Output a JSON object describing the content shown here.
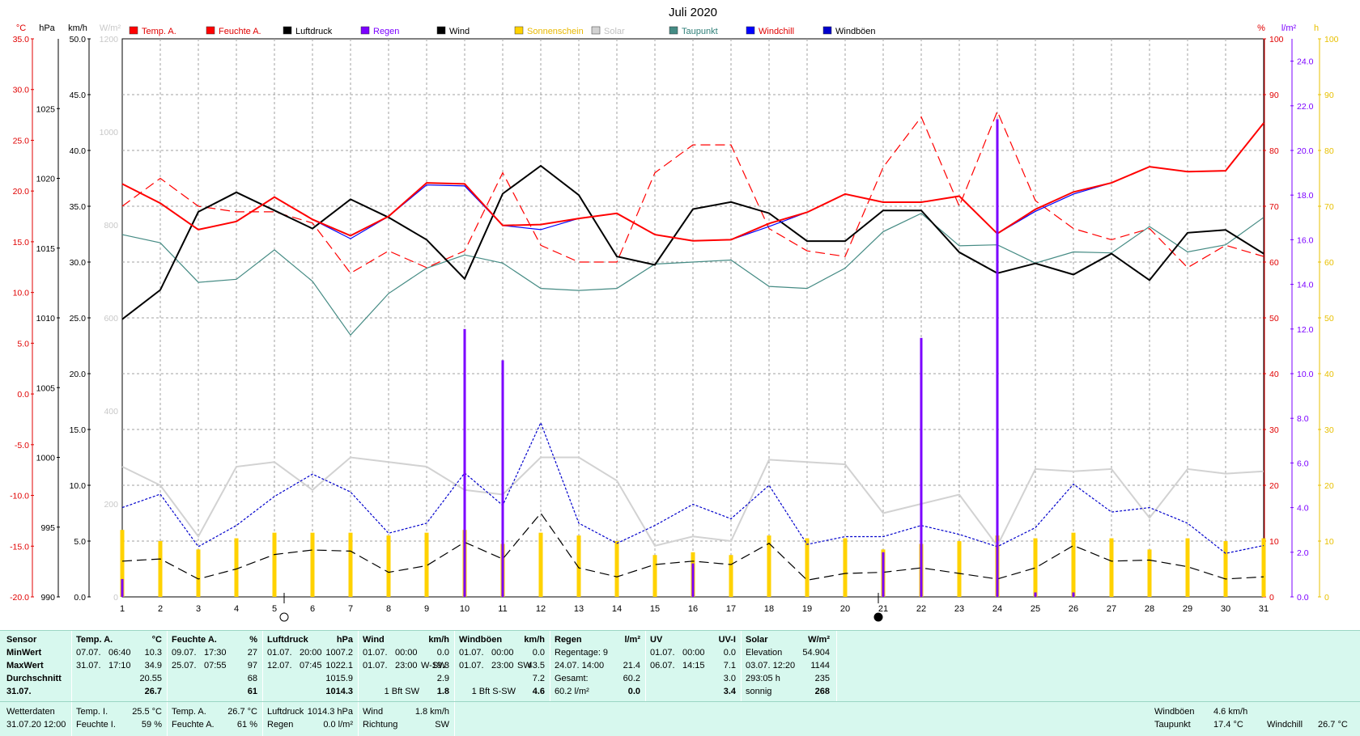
{
  "chart_data": {
    "type": "line",
    "title": "Juli 2020",
    "x": [
      1,
      2,
      3,
      4,
      5,
      6,
      7,
      8,
      9,
      10,
      11,
      12,
      13,
      14,
      15,
      16,
      17,
      18,
      19,
      20,
      21,
      22,
      23,
      24,
      25,
      26,
      27,
      28,
      29,
      30,
      31
    ],
    "axes": [
      {
        "unit": "°C",
        "side": "left",
        "range": [
          -20,
          35
        ],
        "ticks": [
          "35.0",
          "30.0",
          "25.0",
          "20.0",
          "15.0",
          "10.0",
          "5.0",
          "0.0",
          "-5.0",
          "-10.0",
          "-15.0",
          "-20.0"
        ],
        "color": "#e00000"
      },
      {
        "unit": "hPa",
        "side": "left",
        "range": [
          990,
          1030
        ],
        "ticks": [
          "1025",
          "1020",
          "1015",
          "1010",
          "1005",
          "1000",
          "995",
          "990"
        ],
        "color": "#000000"
      },
      {
        "unit": "km/h",
        "side": "left",
        "range": [
          0,
          50
        ],
        "ticks": [
          "50.0",
          "45.0",
          "40.0",
          "35.0",
          "30.0",
          "25.0",
          "20.0",
          "15.0",
          "10.0",
          "5.0",
          "0.0"
        ],
        "color": "#000000"
      },
      {
        "unit": "W/m²",
        "side": "left",
        "range": [
          0,
          1200
        ],
        "ticks": [
          "1200",
          "1000",
          "800",
          "600",
          "400",
          "200",
          "0"
        ],
        "color": "#c8c8c8"
      },
      {
        "unit": "%",
        "side": "right",
        "range": [
          0,
          100
        ],
        "ticks": [
          "100",
          "90",
          "80",
          "70",
          "60",
          "50",
          "40",
          "30",
          "20",
          "10",
          "0"
        ],
        "color": "#e00000"
      },
      {
        "unit": "l/m²",
        "side": "right",
        "range": [
          0,
          25
        ],
        "ticks": [
          "24.0",
          "22.0",
          "20.0",
          "18.0",
          "16.0",
          "14.0",
          "12.0",
          "10.0",
          "8.0",
          "6.0",
          "4.0",
          "2.0",
          "0.0"
        ],
        "color": "#7b00ff"
      },
      {
        "unit": "h",
        "side": "right",
        "range": [
          0,
          100
        ],
        "ticks": [
          "100",
          "90",
          "80",
          "70",
          "60",
          "50",
          "40",
          "30",
          "20",
          "10",
          "0"
        ],
        "color": "#e8c000"
      }
    ],
    "grid": true,
    "legend_position": "top",
    "series": [
      {
        "name": "Temp. A.",
        "axis": "°C",
        "color": "#ff0000",
        "style": "solid-thick",
        "values": [
          20.7,
          18.8,
          16.2,
          17.0,
          19.4,
          17.2,
          15.6,
          17.5,
          20.8,
          20.7,
          16.6,
          16.7,
          17.3,
          17.8,
          15.7,
          15.1,
          15.2,
          16.8,
          17.9,
          19.7,
          18.9,
          18.9,
          19.5,
          15.8,
          18.2,
          19.9,
          20.8,
          22.4,
          21.9,
          22.0,
          26.7
        ]
      },
      {
        "name": "Feuchte A.",
        "axis": "%",
        "color": "#ff0000",
        "style": "dashed",
        "values": [
          70,
          75,
          70,
          69,
          69,
          67,
          58,
          62,
          59,
          62,
          76,
          63,
          60,
          60,
          76,
          81,
          81,
          66,
          62,
          61,
          77,
          86,
          70,
          87,
          71,
          66,
          64,
          66,
          59,
          63,
          61
        ]
      },
      {
        "name": "Luftdruck",
        "axis": "hPa",
        "color": "#000000",
        "style": "solid-thick",
        "values": [
          1009.9,
          1012.0,
          1017.6,
          1019.0,
          1017.7,
          1016.4,
          1018.5,
          1017.2,
          1015.6,
          1012.8,
          1018.9,
          1020.9,
          1018.8,
          1014.4,
          1013.8,
          1017.8,
          1018.3,
          1017.5,
          1015.5,
          1015.5,
          1017.7,
          1017.7,
          1014.7,
          1013.2,
          1013.9,
          1013.1,
          1014.6,
          1012.7,
          1016.1,
          1016.3,
          1014.6
        ]
      },
      {
        "name": "Regen",
        "axis": "l/m²",
        "color": "#7b00ff",
        "style": "bar",
        "values": [
          0.8,
          0,
          0,
          0,
          0,
          0,
          0,
          0,
          0,
          12.0,
          10.6,
          0,
          0,
          0,
          0,
          1.5,
          0,
          0,
          0,
          0,
          2.0,
          11.6,
          0,
          21.4,
          0.2,
          0.2,
          0,
          0,
          0,
          0,
          0
        ]
      },
      {
        "name": "Wind",
        "axis": "km/h",
        "color": "#000000",
        "style": "dashed",
        "values": [
          3.2,
          3.4,
          1.6,
          2.5,
          3.8,
          4.2,
          4.1,
          2.2,
          2.8,
          4.9,
          3.4,
          7.5,
          2.6,
          1.8,
          2.9,
          3.2,
          2.9,
          4.8,
          1.5,
          2.1,
          2.2,
          2.6,
          2.1,
          1.6,
          2.6,
          4.6,
          3.2,
          3.3,
          2.7,
          1.6,
          1.8
        ]
      },
      {
        "name": "Sonnenschein",
        "axis": "h",
        "color": "#ffd200",
        "style": "bar",
        "values": [
          12,
          10,
          8.5,
          10.5,
          11.5,
          11.5,
          11.5,
          11,
          11.5,
          12,
          9.5,
          11.5,
          11,
          10,
          7.5,
          8,
          7.5,
          11,
          10.5,
          10.5,
          8.5,
          9.5,
          10,
          11,
          10.5,
          11.5,
          10.5,
          8.5,
          10.5,
          10,
          10.5
        ]
      },
      {
        "name": "Solar",
        "axis": "W/m²",
        "color": "#d2d2d2",
        "style": "solid-thick",
        "values": [
          280,
          240,
          130,
          280,
          290,
          230,
          300,
          290,
          280,
          230,
          220,
          300,
          300,
          250,
          110,
          130,
          120,
          295,
          290,
          285,
          180,
          200,
          220,
          110,
          275,
          270,
          275,
          170,
          275,
          265,
          270
        ]
      },
      {
        "name": "Taupunkt",
        "axis": "°C",
        "color": "#458b84",
        "style": "solid",
        "values": [
          15.7,
          14.9,
          11.0,
          11.3,
          14.2,
          11.1,
          5.8,
          9.9,
          12.4,
          13.7,
          12.9,
          10.4,
          10.2,
          10.4,
          12.8,
          13.0,
          13.2,
          10.6,
          10.4,
          12.4,
          16.0,
          17.8,
          14.6,
          14.7,
          12.9,
          14.0,
          13.9,
          16.5,
          14.0,
          14.7,
          17.4
        ]
      },
      {
        "name": "Windchill",
        "axis": "°C",
        "color": "#0000ff",
        "style": "solid",
        "values": [
          20.7,
          18.8,
          16.2,
          17.0,
          19.4,
          17.2,
          15.3,
          17.5,
          20.6,
          20.5,
          16.6,
          16.2,
          17.3,
          17.8,
          15.7,
          15.1,
          15.2,
          16.5,
          17.9,
          19.7,
          18.9,
          18.9,
          19.5,
          15.8,
          18.0,
          19.7,
          20.8,
          22.4,
          21.9,
          22.0,
          26.7
        ]
      },
      {
        "name": "Windböen",
        "axis": "km/h",
        "color": "#0000cc",
        "style": "dotted",
        "values": [
          8.0,
          9.2,
          4.5,
          6.4,
          9.0,
          11.0,
          9.4,
          5.7,
          6.6,
          11.1,
          8.2,
          15.6,
          6.6,
          4.8,
          6.4,
          8.3,
          7.0,
          10.0,
          4.7,
          5.4,
          5.4,
          6.4,
          5.6,
          4.5,
          6.2,
          10.1,
          7.6,
          8.0,
          6.6,
          3.9,
          4.6
        ]
      }
    ],
    "markers": {
      "full_moon_day": 5,
      "new_moon_day": 21
    }
  },
  "stats": {
    "col_sensor": {
      "header": "Sensor",
      "rows": [
        "MinWert",
        "MaxWert",
        "Durchschnitt",
        "31.07."
      ]
    },
    "temp": {
      "header": "Temp. A.",
      "unit": "°C",
      "rows": [
        [
          "07.07.",
          "06:40",
          "10.3"
        ],
        [
          "31.07.",
          "17:10",
          "34.9"
        ],
        [
          "",
          "",
          "20.55"
        ],
        [
          "",
          "",
          "26.7"
        ]
      ]
    },
    "humidity": {
      "header": "Feuchte A.",
      "unit": "%",
      "rows": [
        [
          "09.07.",
          "17:30",
          "27"
        ],
        [
          "25.07.",
          "07:55",
          "97"
        ],
        [
          "",
          "",
          "68"
        ],
        [
          "",
          "",
          "61"
        ]
      ]
    },
    "pressure": {
      "header": "Luftdruck",
      "unit": "hPa",
      "rows": [
        [
          "01.07.",
          "20:00",
          "1007.2"
        ],
        [
          "12.07.",
          "07:45",
          "1022.1"
        ],
        [
          "",
          "",
          "1015.9"
        ],
        [
          "",
          "",
          "1014.3"
        ]
      ]
    },
    "wind": {
      "header": "Wind",
      "unit": "km/h",
      "rows": [
        [
          "01.07.",
          "00:00",
          "",
          "0.0"
        ],
        [
          "01.07.",
          "23:00",
          "W-SW",
          "19.3"
        ],
        [
          "",
          "",
          "",
          "2.9"
        ],
        [
          "",
          "",
          "1 Bft SW",
          "1.8"
        ]
      ]
    },
    "gusts": {
      "header": "Windböen",
      "unit": "km/h",
      "rows": [
        [
          "01.07.",
          "00:00",
          "",
          "0.0"
        ],
        [
          "01.07.",
          "23:00",
          "SW",
          "43.5"
        ],
        [
          "",
          "",
          "",
          "7.2"
        ],
        [
          "",
          "",
          "1 Bft S-SW",
          "4.6"
        ]
      ]
    },
    "rain": {
      "header": "Regen",
      "unit": "l/m²",
      "rows": [
        [
          "Regentage: 9",
          ""
        ],
        [
          "24.07.  14:00",
          "21.4"
        ],
        [
          "Gesamt:",
          "60.2"
        ],
        [
          "60.2 l/m²",
          "0.0"
        ]
      ]
    },
    "uv": {
      "header": "UV",
      "unit": "UV-I",
      "rows": [
        [
          "01.07.",
          "00:00",
          "0.0"
        ],
        [
          "06.07.",
          "14:15",
          "7.1"
        ],
        [
          "",
          "",
          "3.0"
        ],
        [
          "",
          "",
          "3.4"
        ]
      ]
    },
    "solar": {
      "header": "Solar",
      "unit": "W/m²",
      "rows": [
        [
          "Elevation",
          "54.904"
        ],
        [
          "03.07.  12:20",
          "1144"
        ],
        [
          "293:05 h",
          "235"
        ],
        [
          "sonnig",
          "268"
        ]
      ]
    }
  },
  "current": {
    "wetterdaten": {
      "label": "Wetterdaten",
      "datetime": "31.07.20 12:00"
    },
    "temp_i": {
      "label": "Temp. I.",
      "value": "25.5 °C"
    },
    "feuchte_i": {
      "label": "Feuchte I.",
      "value": "59 %"
    },
    "temp_a": {
      "label": "Temp. A.",
      "value": "26.7 °C"
    },
    "feuchte_a": {
      "label": "Feuchte A.",
      "value": "61 %"
    },
    "luftdruck": {
      "label": "Luftdruck",
      "value": "1014.3 hPa"
    },
    "regen": {
      "label": "Regen",
      "value": "0.0 l/m²"
    },
    "wind": {
      "label": "Wind",
      "value": "1.8 km/h"
    },
    "richtung": {
      "label": "Richtung",
      "value": "SW"
    },
    "windboeen": {
      "label": "Windböen",
      "value": "4.6 km/h"
    },
    "taupunkt": {
      "label": "Taupunkt",
      "value": "17.4 °C"
    },
    "windchill": {
      "label": "Windchill",
      "value": "26.7 °C"
    }
  }
}
